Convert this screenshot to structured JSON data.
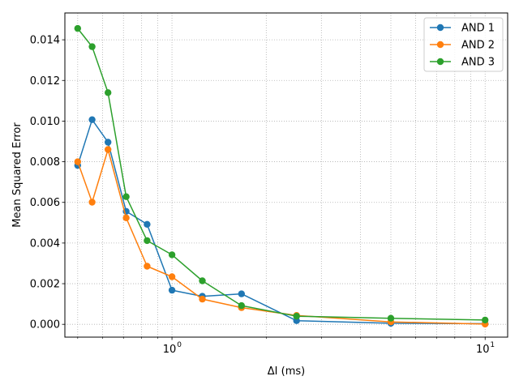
{
  "chart_data": {
    "type": "line",
    "xlabel": "ΔI (ms)",
    "ylabel": "Mean Squared Error",
    "xscale": "log",
    "xlim": [
      0.455,
      11.8
    ],
    "ylim": [
      -0.00063,
      0.01532
    ],
    "x_ticks": [
      {
        "value": 1,
        "label": "10",
        "exp": "0"
      },
      {
        "value": 10,
        "label": "10",
        "exp": "1"
      }
    ],
    "y_ticks": [
      "0.000",
      "0.002",
      "0.004",
      "0.006",
      "0.008",
      "0.010",
      "0.012",
      "0.014"
    ],
    "grid": true,
    "legend_position": "top-right",
    "x": [
      0.5,
      0.556,
      0.625,
      0.714,
      0.833,
      1.0,
      1.25,
      1.667,
      2.5,
      5.0,
      10.0
    ],
    "series": [
      {
        "name": "AND 1",
        "color": "#1f77b4",
        "values": [
          0.00782,
          0.01007,
          0.00896,
          0.00556,
          0.00492,
          0.00168,
          0.00138,
          0.0015,
          0.00018,
          5e-05,
          3e-05
        ]
      },
      {
        "name": "AND 2",
        "color": "#ff7f0e",
        "values": [
          0.008,
          0.00601,
          0.0086,
          0.00524,
          0.00286,
          0.00234,
          0.00124,
          0.00082,
          0.00044,
          0.00012,
          1e-05
        ]
      },
      {
        "name": "AND 3",
        "color": "#2ca02c",
        "values": [
          0.01456,
          0.01366,
          0.0114,
          0.00628,
          0.00412,
          0.00342,
          0.00214,
          0.00092,
          0.0004,
          0.0003,
          0.00021
        ]
      }
    ]
  }
}
